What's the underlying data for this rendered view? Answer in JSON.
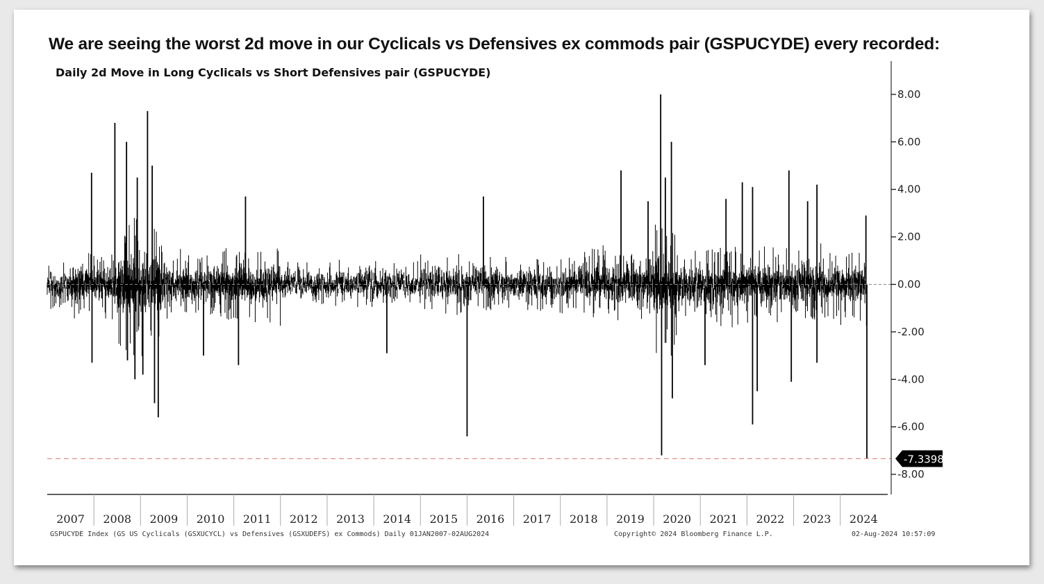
{
  "headline": "We are seeing the worst 2d move in our Cyclicals vs Defensives ex commods pair (GSPUCYDE) every recorded:",
  "chart_data": {
    "type": "bar",
    "title": "Daily 2d Move in Long Cyclicals vs Short Defensives pair (GSPUCYDE)",
    "xlabel": "",
    "ylabel": "",
    "x_range": [
      2007.0,
      2024.6
    ],
    "ylim": [
      -8.8,
      9.6
    ],
    "years": [
      "2007",
      "2008",
      "2009",
      "2010",
      "2011",
      "2012",
      "2013",
      "2014",
      "2015",
      "2016",
      "2017",
      "2018",
      "2019",
      "2020",
      "2021",
      "2022",
      "2023",
      "2024"
    ],
    "y_ticks": [
      8,
      6,
      4,
      2,
      0,
      -2,
      -4,
      -6,
      -8
    ],
    "y_tick_labels": [
      "8.00",
      "6.00",
      "4.00",
      "2.00",
      "0.00",
      "-2.00",
      "-4.00",
      "-6.00",
      "-8.00"
    ],
    "last_value": -7.3398,
    "last_value_label": "-7.3398",
    "reference_lines": [
      {
        "value": 0,
        "style": "dashed",
        "color": "#888888"
      },
      {
        "value": -7.3398,
        "style": "dashed",
        "color": "#e88b8b"
      }
    ],
    "extremes": [
      {
        "t": 2007.95,
        "value": 4.7
      },
      {
        "t": 2007.96,
        "value": -3.3
      },
      {
        "t": 2008.45,
        "value": 6.8
      },
      {
        "t": 2008.7,
        "value": 6.0
      },
      {
        "t": 2008.72,
        "value": -3.2
      },
      {
        "t": 2008.88,
        "value": -4.0
      },
      {
        "t": 2008.93,
        "value": 4.5
      },
      {
        "t": 2009.05,
        "value": -3.8
      },
      {
        "t": 2009.15,
        "value": 7.3
      },
      {
        "t": 2009.25,
        "value": 5.0
      },
      {
        "t": 2009.3,
        "value": -5.0
      },
      {
        "t": 2009.38,
        "value": -5.6
      },
      {
        "t": 2010.35,
        "value": -3.0
      },
      {
        "t": 2011.1,
        "value": -3.4
      },
      {
        "t": 2011.25,
        "value": 3.7
      },
      {
        "t": 2014.28,
        "value": -2.9
      },
      {
        "t": 2016.0,
        "value": -6.4
      },
      {
        "t": 2016.35,
        "value": 3.7
      },
      {
        "t": 2019.3,
        "value": 4.8
      },
      {
        "t": 2019.88,
        "value": 3.5
      },
      {
        "t": 2020.15,
        "value": 8.0
      },
      {
        "t": 2020.17,
        "value": -7.2
      },
      {
        "t": 2020.25,
        "value": 4.5
      },
      {
        "t": 2020.38,
        "value": 6.0
      },
      {
        "t": 2020.4,
        "value": -4.8
      },
      {
        "t": 2021.1,
        "value": -3.4
      },
      {
        "t": 2021.55,
        "value": 3.6
      },
      {
        "t": 2021.9,
        "value": 4.3
      },
      {
        "t": 2022.12,
        "value": 4.1
      },
      {
        "t": 2022.12,
        "value": -5.9
      },
      {
        "t": 2022.22,
        "value": -4.5
      },
      {
        "t": 2022.9,
        "value": 4.8
      },
      {
        "t": 2022.95,
        "value": -4.1
      },
      {
        "t": 2023.3,
        "value": 3.5
      },
      {
        "t": 2023.5,
        "value": 4.2
      },
      {
        "t": 2023.5,
        "value": -3.3
      },
      {
        "t": 2024.55,
        "value": 2.9
      },
      {
        "t": 2024.57,
        "value": -7.3398
      }
    ],
    "volatility_regimes": [
      {
        "from": 2007.0,
        "to": 2007.5,
        "amplitude": 0.9
      },
      {
        "from": 2007.5,
        "to": 2008.5,
        "amplitude": 1.5
      },
      {
        "from": 2008.5,
        "to": 2009.45,
        "amplitude": 3.0
      },
      {
        "from": 2009.45,
        "to": 2010.5,
        "amplitude": 1.5
      },
      {
        "from": 2010.5,
        "to": 2012.0,
        "amplitude": 1.6
      },
      {
        "from": 2012.0,
        "to": 2015.0,
        "amplitude": 0.85
      },
      {
        "from": 2015.0,
        "to": 2018.5,
        "amplitude": 1.1
      },
      {
        "from": 2018.5,
        "to": 2020.0,
        "amplitude": 1.5
      },
      {
        "from": 2020.0,
        "to": 2020.5,
        "amplitude": 2.8
      },
      {
        "from": 2020.5,
        "to": 2024.6,
        "amplitude": 1.6
      }
    ]
  },
  "footer": {
    "left": "GSPUCYDE Index (GS US Cyclicals (GSXUCYCL) vs Defensives (GSXUDEFS) ex Commods)  Daily 01JAN2007-02AUG2024",
    "center": "Copyright© 2024 Bloomberg Finance L.P.",
    "right": "02-Aug-2024 10:57:09"
  },
  "colors": {
    "bars": "#000000",
    "zero_line": "#888888",
    "last_line": "#e88b8b",
    "badge": "#000000"
  }
}
